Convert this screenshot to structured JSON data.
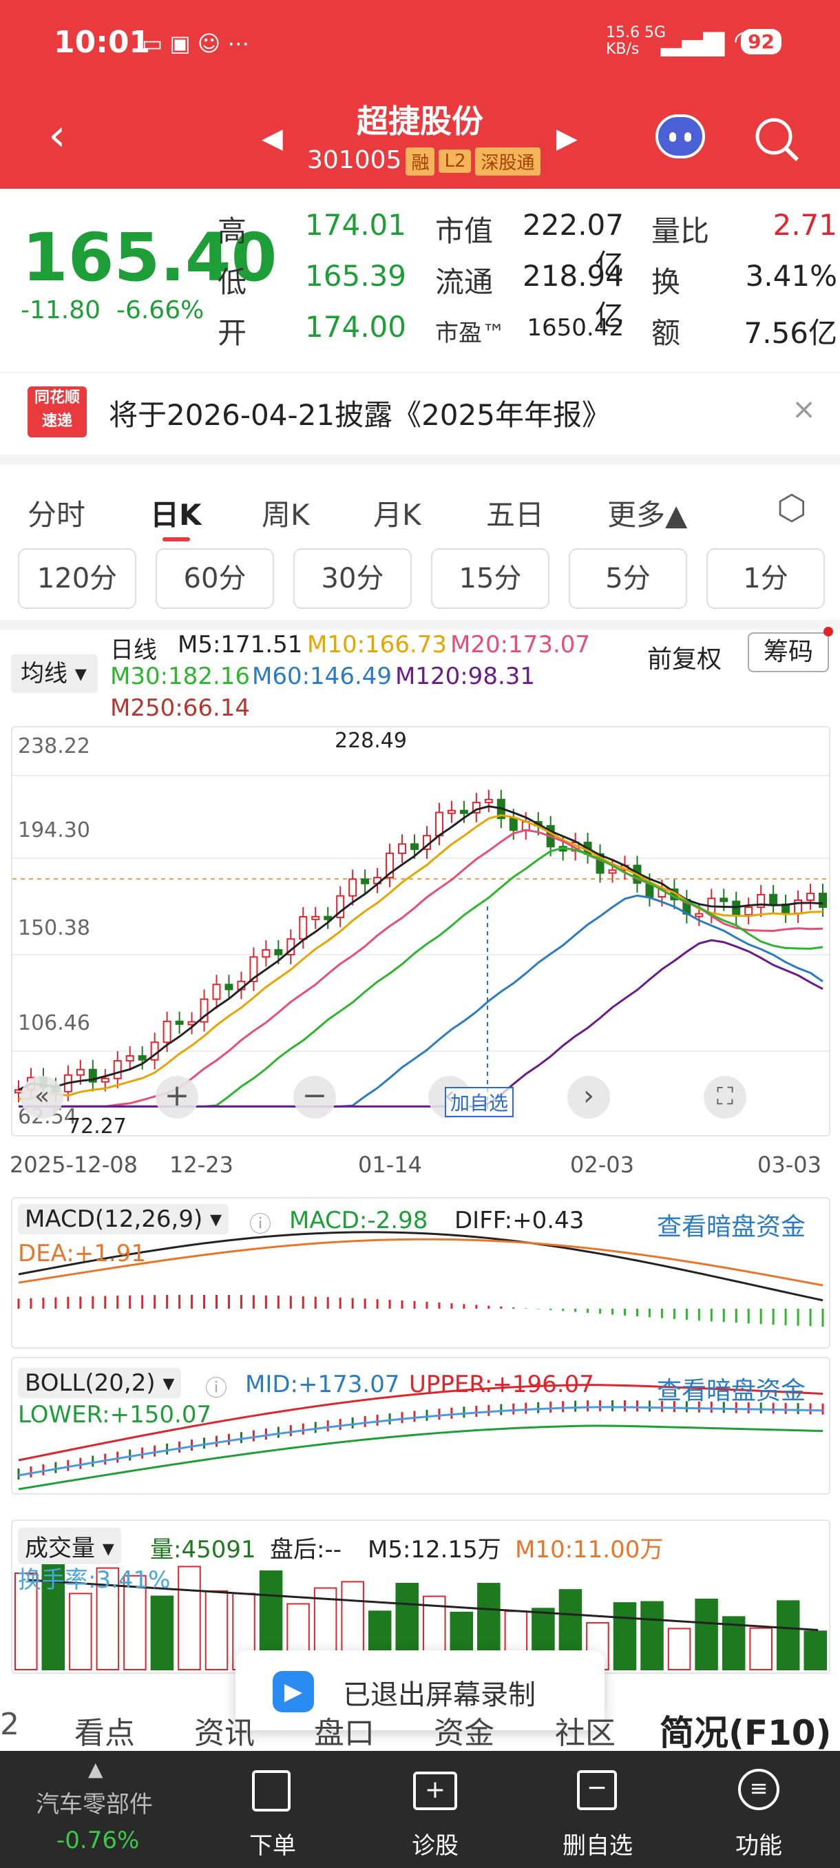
{
  "status": {
    "time": "10:01",
    "net_speed": "15.6",
    "net_unit": "KB/s",
    "net_type": "5G",
    "battery": "92"
  },
  "header": {
    "name": "超捷股份",
    "code": "301005",
    "tags": [
      "融",
      "L2",
      "深股通"
    ]
  },
  "quote": {
    "price": "165.40",
    "change": "-11.80",
    "change_pct": "-6.66%",
    "high_label": "高",
    "high": "174.01",
    "low_label": "低",
    "low": "165.39",
    "open_label": "开",
    "open": "174.00",
    "mcap_label": "市值",
    "mcap": "222.07亿",
    "float_label": "流通",
    "float": "218.94亿",
    "pe_label": "市盈™",
    "pe": "1650.42",
    "vr_label": "量比",
    "vr": "2.71",
    "turn_label": "换",
    "turn": "3.41%",
    "amt_label": "额",
    "amt": "7.56亿"
  },
  "notice": {
    "logo_top": "同花顺",
    "logo_bottom": "速递",
    "text": "将于2026-04-21披露《2025年年报》"
  },
  "tabs": [
    "分时",
    "日K",
    "周K",
    "月K",
    "五日",
    "更多▲"
  ],
  "periods": [
    "120分",
    "60分",
    "30分",
    "15分",
    "5分",
    "1分"
  ],
  "ma": {
    "selector": "均线",
    "kind": "日线",
    "m5": "M5:171.51",
    "m10": "M10:166.73",
    "m20": "M20:173.07",
    "m30": "M30:182.16",
    "m60": "M60:146.49",
    "m120": "M120:98.31",
    "m250": "M250:66.14",
    "adj": "前复权",
    "chip": "筹码"
  },
  "kline": {
    "yticks": [
      "238.22",
      "194.30",
      "150.38",
      "106.46",
      "62.54"
    ],
    "max_label": "228.49",
    "min_label": "72.27",
    "dates": [
      "2025-12-08",
      "12-23",
      "01-14",
      "02-03",
      "03-03"
    ],
    "watch": "加自选",
    "colors": {
      "up": "#e0242c",
      "down": "#1e7a1e"
    }
  },
  "macd": {
    "name": "MACD(12,26,9)",
    "macd": "MACD:-2.98",
    "diff": "DIFF:+0.43",
    "dea": "DEA:+1.91",
    "link": "查看暗盘资金"
  },
  "boll": {
    "name": "BOLL(20,2)",
    "mid": "MID:+173.07",
    "upper": "UPPER:+196.07",
    "lower": "LOWER:+150.07",
    "link": "查看暗盘资金"
  },
  "vol": {
    "name": "成交量",
    "qty": "量:45091",
    "after": "盘后:--",
    "m5": "M5:12.15万",
    "m10": "M10:11.00万",
    "turnover": "换手率:3.41%"
  },
  "toast": "已退出屏幕录制",
  "subtabs": [
    "看点",
    "资讯",
    "盘口",
    "资金",
    "社区",
    "简况(F10)"
  ],
  "bottom": {
    "sector": "汽车零部件",
    "sector_chg": "-0.76%",
    "items": [
      "下单",
      "诊股",
      "删自选",
      "功能"
    ]
  }
}
